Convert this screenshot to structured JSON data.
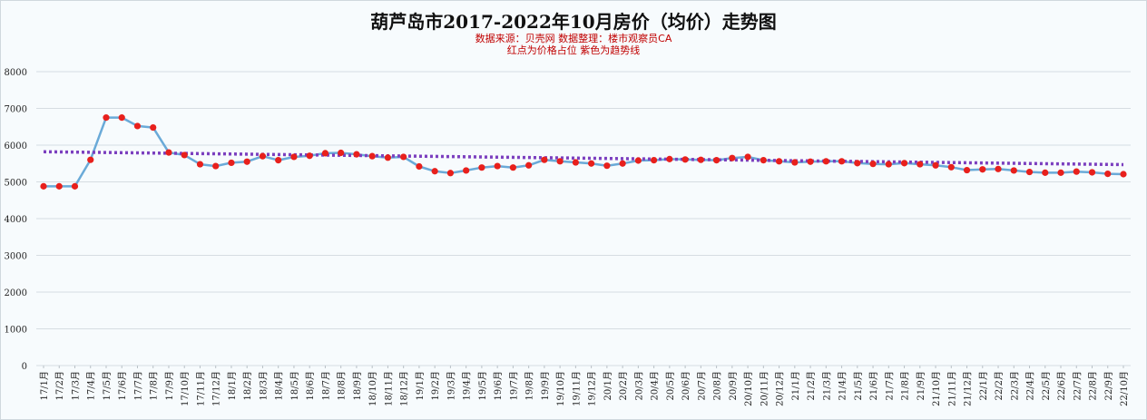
{
  "chart_data": {
    "type": "line",
    "title": "葫芦岛市2017-2022年10月房价（均价）走势图",
    "subtitle_lines": [
      "数据来源：贝壳网 数据整理：楼市观察员CA",
      "红点为价格占位 紫色为趋势线"
    ],
    "ylim": [
      0,
      8000
    ],
    "yticks": [
      "0",
      "1000",
      "2000",
      "3000",
      "4000",
      "5000",
      "6000",
      "7000",
      "8000"
    ],
    "grid": true,
    "categories": [
      "17/1月",
      "17/2月",
      "17/3月",
      "17/4月",
      "17/5月",
      "17/6月",
      "17/7月",
      "17/8月",
      "17/9月",
      "17/10月",
      "17/11月",
      "17/12月",
      "18/1月",
      "18/2月",
      "18/3月",
      "18/4月",
      "18/5月",
      "18/6月",
      "18/7月",
      "18/8月",
      "18/9月",
      "18/10月",
      "18/11月",
      "18/12月",
      "19/1月",
      "19/2月",
      "19/3月",
      "19/4月",
      "19/5月",
      "19/6月",
      "19/7月",
      "19/8月",
      "19/9月",
      "19/10月",
      "19/11月",
      "19/12月",
      "20/1月",
      "20/2月",
      "20/3月",
      "20/4月",
      "20/5月",
      "20/6月",
      "20/7月",
      "20/8月",
      "20/9月",
      "20/10月",
      "20/11月",
      "20/12月",
      "21/1月",
      "21/2月",
      "21/3月",
      "21/4月",
      "21/5月",
      "21/6月",
      "21/7月",
      "21/8月",
      "21/9月",
      "21/10月",
      "21/11月",
      "21/12月",
      "22/1月",
      "22/2月",
      "22/3月",
      "22/4月",
      "22/5月",
      "22/6月",
      "22/7月",
      "22/8月",
      "22/9月",
      "22/10月"
    ],
    "series": [
      {
        "values": [
          4880,
          4880,
          4880,
          5600,
          6750,
          6750,
          6520,
          6480,
          5800,
          5730,
          5480,
          5430,
          5520,
          5550,
          5700,
          5590,
          5680,
          5710,
          5780,
          5790,
          5750,
          5700,
          5660,
          5680,
          5420,
          5290,
          5240,
          5310,
          5390,
          5430,
          5390,
          5450,
          5600,
          5560,
          5530,
          5500,
          5440,
          5500,
          5580,
          5590,
          5620,
          5610,
          5600,
          5590,
          5650,
          5680,
          5590,
          5560,
          5530,
          5550,
          5560,
          5560,
          5510,
          5490,
          5480,
          5510,
          5480,
          5450,
          5400,
          5320,
          5340,
          5350,
          5310,
          5270,
          5250,
          5250,
          5280,
          5260,
          5220,
          5210
        ],
        "color": "#6aaad8",
        "marker_color": "#e8201c"
      }
    ],
    "trendline": {
      "start": 5820,
      "end": 5470,
      "color": "#7b3fbf",
      "style": "dotted"
    }
  }
}
